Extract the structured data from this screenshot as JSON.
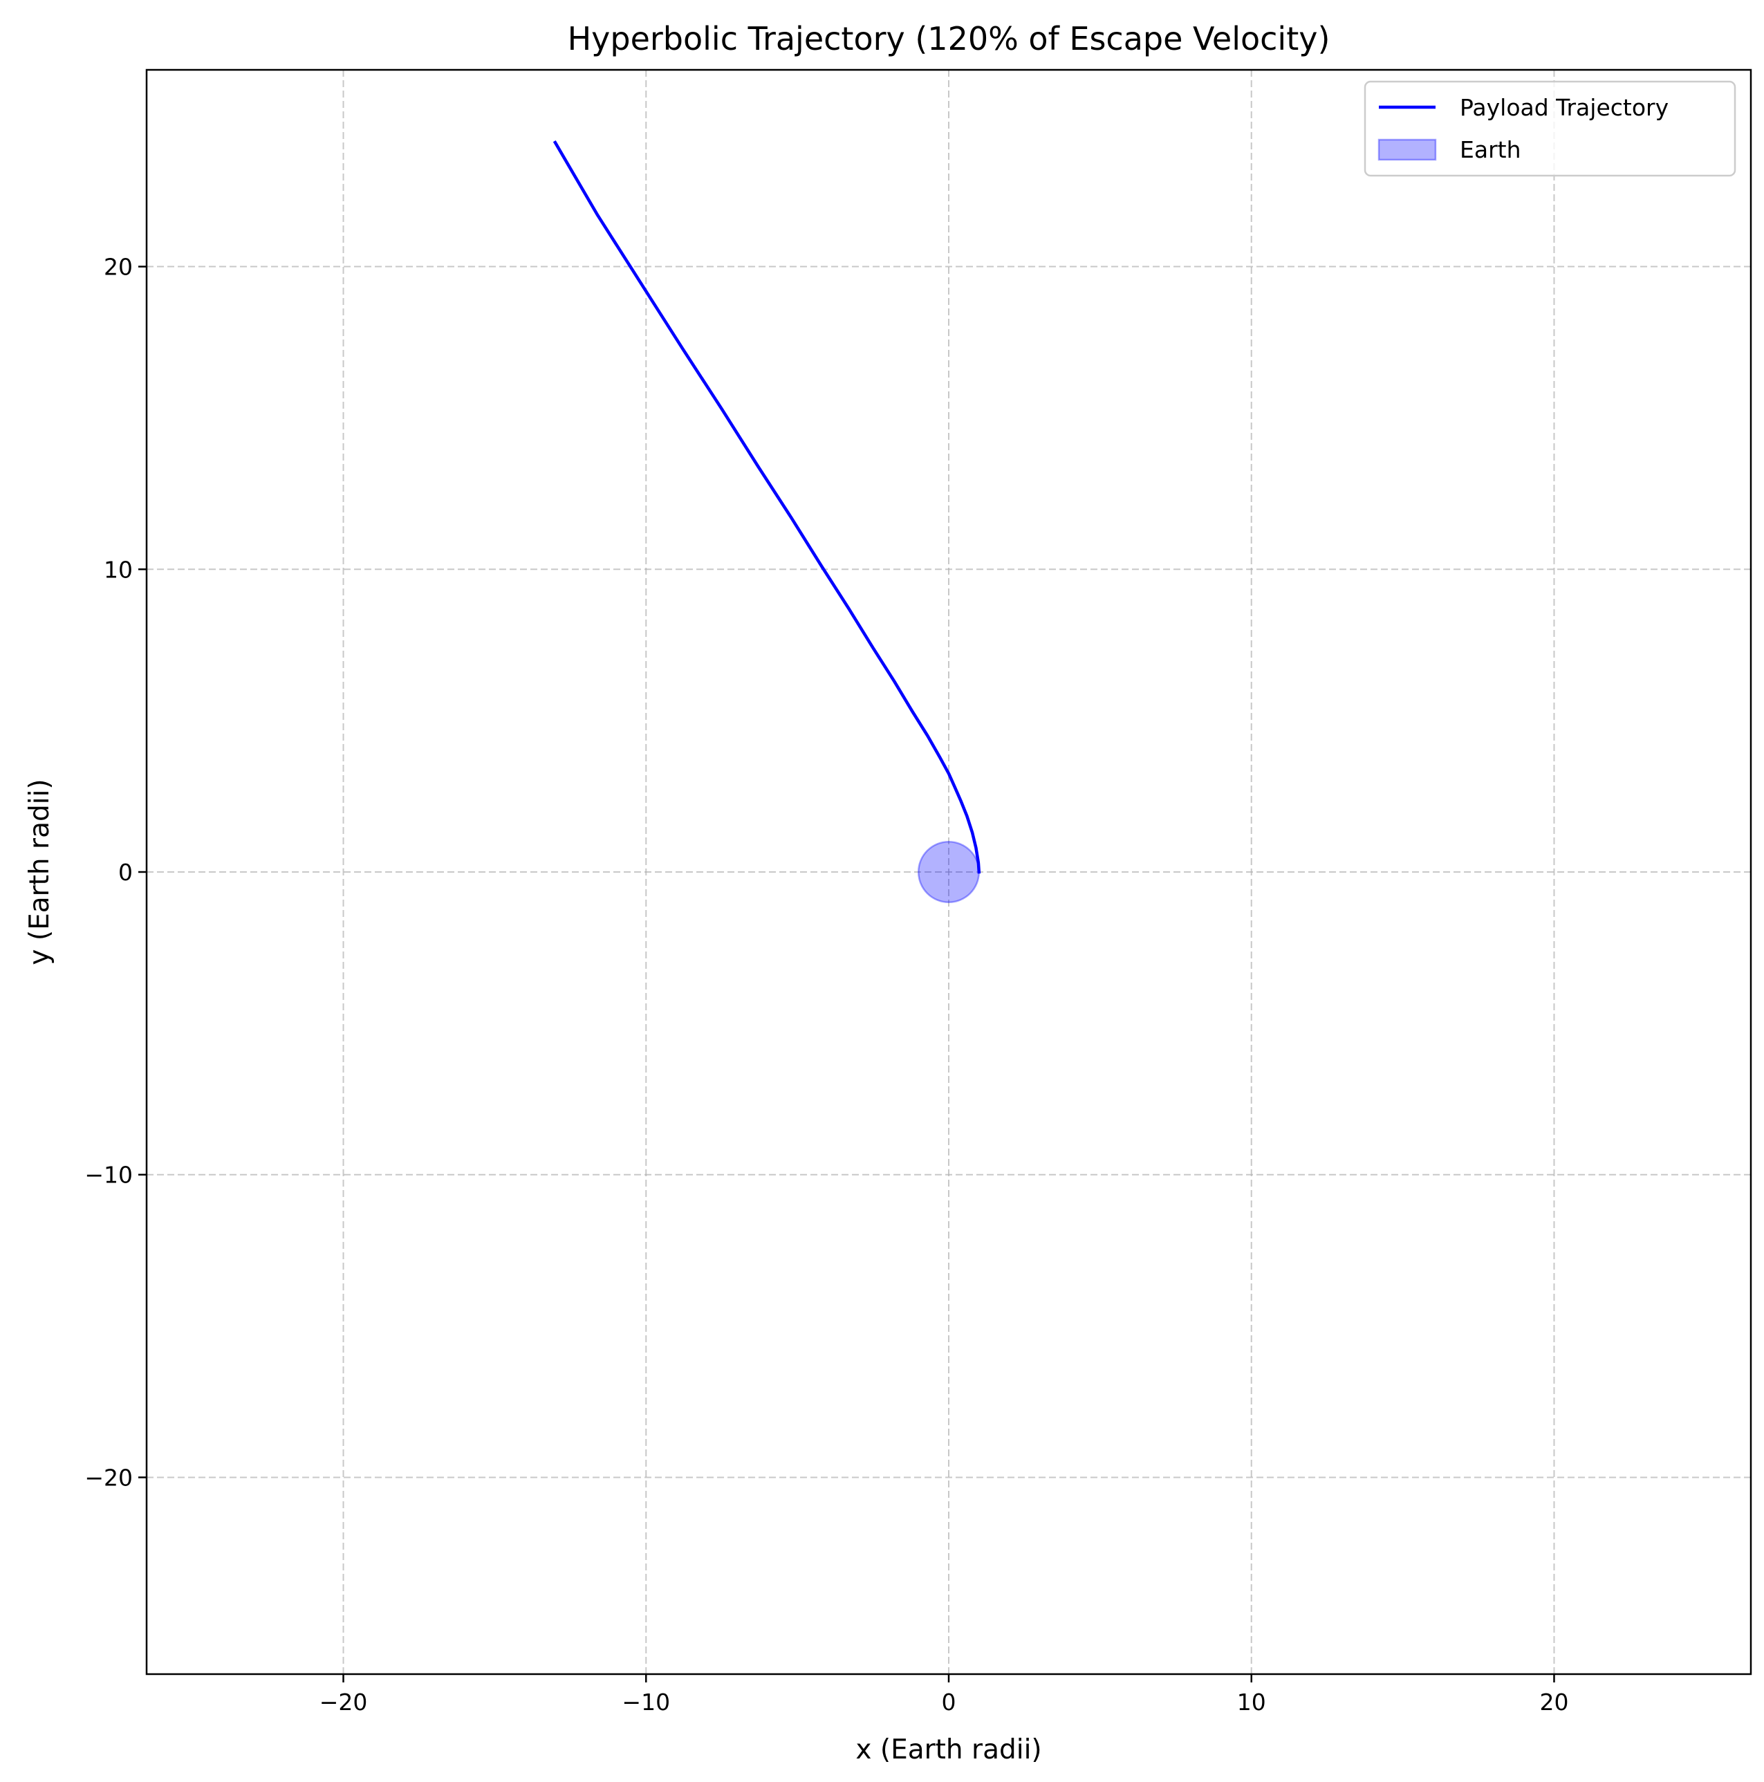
{
  "chart_data": {
    "type": "line",
    "title": "Hyperbolic Trajectory (120% of Escape Velocity)",
    "xlabel": "x (Earth radii)",
    "ylabel": "y (Earth radii)",
    "xlim": [
      -26.5,
      26.5
    ],
    "ylim": [
      -26.5,
      26.5
    ],
    "x_ticks": [
      -20,
      -10,
      0,
      10,
      20
    ],
    "y_ticks": [
      -20,
      -10,
      0,
      10,
      20
    ],
    "x_tick_labels": [
      "−20",
      "−10",
      "0",
      "10",
      "20"
    ],
    "y_tick_labels": [
      "−20",
      "−10",
      "0",
      "10",
      "20"
    ],
    "grid": true,
    "grid_style": "dashed",
    "legend_position": "top-right",
    "series": [
      {
        "name": "Payload Trajectory",
        "kind": "line",
        "color": "#0000ff",
        "x": [
          1.0,
          0.98,
          0.9,
          0.78,
          0.6,
          0.4,
          0.2,
          0.0,
          -0.3,
          -0.7,
          -1.2,
          -1.8,
          -2.5,
          -3.3,
          -4.2,
          -5.2,
          -6.3,
          -7.5,
          -8.8,
          -10.2,
          -11.6,
          -13.0
        ],
        "y": [
          0.0,
          0.3,
          0.8,
          1.3,
          1.85,
          2.35,
          2.8,
          3.25,
          3.8,
          4.5,
          5.3,
          6.3,
          7.4,
          8.7,
          10.1,
          11.7,
          13.4,
          15.3,
          17.3,
          19.5,
          21.7,
          24.1
        ]
      },
      {
        "name": "Earth",
        "kind": "circle",
        "center": [
          0,
          0
        ],
        "radius": 1.0,
        "fill_color": "#0000ff",
        "fill_opacity": 0.3
      }
    ]
  }
}
